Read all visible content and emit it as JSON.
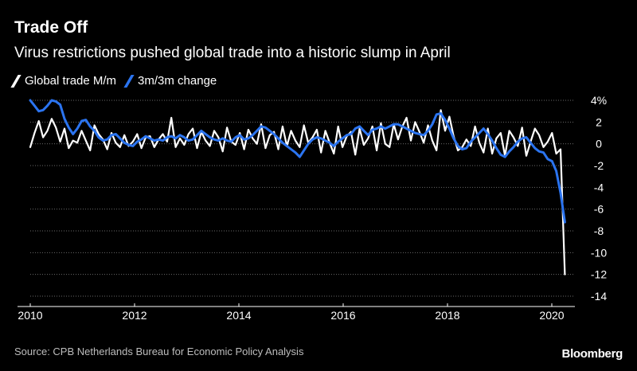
{
  "title": "Trade Off",
  "subtitle": "Virus restrictions pushed global trade into a historic slump in April",
  "source": "Source: CPB Netherlands Bureau for Economic Policy Analysis",
  "logo": "Bloomberg",
  "colors": {
    "background": "#000000",
    "global": "#ffffff",
    "threemonth": "#2b74f0",
    "grid": "#6a6a6a"
  },
  "chart_data": {
    "type": "line",
    "x_start": "2010-01",
    "x_end": "2020-04",
    "xticks": [
      "2010",
      "2012",
      "2014",
      "2016",
      "2018",
      "2020"
    ],
    "yticks": [
      "4%",
      "2",
      "0",
      "-2",
      "-4",
      "-6",
      "-8",
      "-10",
      "-12",
      "-14"
    ],
    "ylim": [
      -14,
      4.5
    ],
    "grid": true,
    "y_axis_side": "right",
    "legend_position": "top-left",
    "series": [
      {
        "name": "Global trade M/m",
        "color": "#ffffff",
        "values": [
          -0.3,
          1.0,
          2.1,
          0.6,
          1.2,
          2.3,
          1.5,
          0.2,
          1.4,
          -0.4,
          0.3,
          0.1,
          1.2,
          0.3,
          -0.6,
          1.7,
          0.9,
          0.4,
          -0.5,
          1.0,
          0.1,
          -0.3,
          0.8,
          -0.2,
          0.2,
          0.9,
          -0.4,
          0.6,
          0.7,
          -0.3,
          0.4,
          0.9,
          0.2,
          2.4,
          -0.3,
          0.5,
          -0.1,
          0.9,
          1.4,
          -0.4,
          1.1,
          0.3,
          -0.2,
          1.2,
          0.6,
          -0.7,
          1.5,
          0.2,
          -0.1,
          1.0,
          -0.5,
          1.3,
          0.5,
          0.0,
          1.8,
          -0.4,
          0.8,
          1.1,
          -0.5,
          1.6,
          -0.2,
          1.2,
          0.3,
          -0.3,
          1.7,
          0.1,
          0.6,
          1.3,
          -0.8,
          1.2,
          0.1,
          -0.9,
          1.6,
          -0.3,
          0.7,
          1.1,
          -1.0,
          1.4,
          -0.1,
          0.5,
          1.6,
          -0.6,
          1.9,
          0.0,
          -0.3,
          1.8,
          0.4,
          1.6,
          2.4,
          0.3,
          2.0,
          1.1,
          0.1,
          1.7,
          0.3,
          -0.6,
          3.1,
          1.2,
          2.5,
          0.7,
          -0.6,
          -0.3,
          0.4,
          -0.2,
          1.6,
          0.1,
          -0.8,
          1.4,
          -0.9,
          0.5,
          1.0,
          -1.1,
          1.2,
          0.6,
          -0.2,
          1.5,
          -1.1,
          0.2,
          1.4,
          0.8,
          -0.3,
          0.2,
          1.0,
          -0.9,
          -0.5,
          -12.0
        ]
      },
      {
        "name": "3m/3m change",
        "color": "#2b74f0",
        "values": [
          4.0,
          3.5,
          3.0,
          3.1,
          3.5,
          4.0,
          3.9,
          3.6,
          2.3,
          1.5,
          0.9,
          1.4,
          2.1,
          2.2,
          1.6,
          1.2,
          0.6,
          0.3,
          0.4,
          0.8,
          0.9,
          0.5,
          0.1,
          -0.1,
          -0.2,
          0.2,
          0.4,
          0.7,
          0.5,
          0.3,
          0.4,
          0.3,
          0.6,
          0.7,
          0.5,
          0.8,
          0.6,
          0.3,
          0.4,
          0.8,
          1.2,
          0.9,
          0.6,
          0.4,
          0.3,
          0.5,
          0.3,
          0.2,
          0.6,
          0.8,
          0.4,
          0.5,
          0.8,
          1.2,
          1.6,
          1.5,
          1.2,
          0.9,
          0.5,
          0.1,
          -0.2,
          -0.5,
          -0.8,
          -1.2,
          -0.6,
          0.0,
          0.4,
          0.6,
          0.5,
          0.3,
          0.1,
          -0.2,
          0.2,
          0.5,
          0.8,
          0.9,
          1.4,
          1.6,
          1.2,
          0.8,
          1.3,
          1.4,
          1.6,
          1.4,
          1.6,
          1.8,
          1.8,
          1.6,
          1.4,
          1.2,
          1.0,
          0.9,
          0.8,
          1.2,
          1.8,
          2.7,
          2.8,
          2.2,
          1.4,
          0.5,
          -0.2,
          -0.5,
          -0.4,
          0.2,
          0.6,
          1.0,
          1.4,
          0.9,
          0.3,
          -0.4,
          -1.0,
          -1.2,
          -0.7,
          -0.3,
          0.2,
          0.5,
          0.6,
          0.1,
          -0.4,
          -0.7,
          -0.8,
          -1.4,
          -1.6,
          -2.5,
          -4.5,
          -7.2
        ]
      }
    ]
  }
}
